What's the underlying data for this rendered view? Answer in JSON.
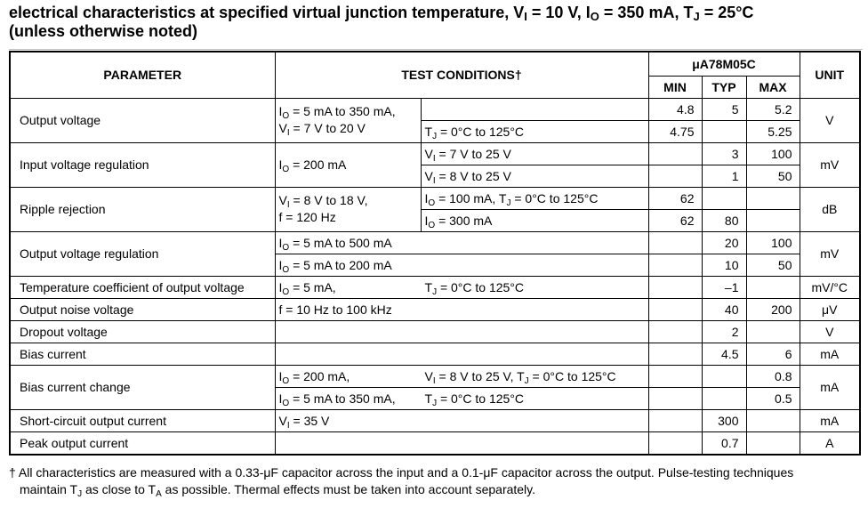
{
  "title": {
    "text": "electrical characteristics at specified virtual junction temperature, V",
    "vi_sub": "I",
    "vi_val": " = 10 V, I",
    "io_sub": "O",
    "io_val": " = 350 mA, T",
    "tj_sub": "J",
    "tj_val": " = 25°C",
    "line2": "(unless otherwise noted)"
  },
  "header": {
    "parameter": "PARAMETER",
    "test_conditions": "TEST CONDITIONS†",
    "device": "μA78M05C",
    "min": "MIN",
    "typ": "TYP",
    "max": "MAX",
    "unit": "UNIT"
  },
  "rows": {
    "output_voltage": {
      "param": "Output voltage",
      "cond_io": "= 5 mA to 350 mA,",
      "cond_vi": "= 7 V to 20 V",
      "sub_tj": "= 0°C to 125°C",
      "r1": {
        "min": "4.8",
        "typ": "5",
        "max": "5.2"
      },
      "r2": {
        "min": "4.75",
        "typ": "",
        "max": "5.25"
      },
      "unit": "V"
    },
    "input_regulation": {
      "param": "Input voltage regulation",
      "cond": "= 200 mA",
      "sub1": "= 7 V to 25 V",
      "sub2": "= 8 V to 25 V",
      "r1": {
        "typ": "3",
        "max": "100"
      },
      "r2": {
        "typ": "1",
        "max": "50"
      },
      "unit": "mV"
    },
    "ripple": {
      "param": "Ripple rejection",
      "cond_vi": "= 8 V to 18 V,",
      "cond_f": "f = 120 Hz",
      "sub1_io": "= 100 mA, T",
      "sub1_tj": "= 0°C to 125°C",
      "sub2": "= 300 mA",
      "r1": {
        "min": "62"
      },
      "r2": {
        "min": "62",
        "typ": "80"
      },
      "unit": "dB"
    },
    "output_regulation": {
      "param": "Output voltage regulation",
      "c1": "= 5 mA to 500 mA",
      "c2": "= 5 mA to 200 mA",
      "r1": {
        "typ": "20",
        "max": "100"
      },
      "r2": {
        "typ": "10",
        "max": "50"
      },
      "unit": "mV"
    },
    "temp_coeff": {
      "param": "Temperature coefficient of output voltage",
      "c_io": "= 5 mA,",
      "c_tj": "= 0°C to 125°C",
      "typ": "–1",
      "unit": "mV/°C"
    },
    "noise": {
      "param": "Output noise voltage",
      "cond": "f = 10 Hz to 100 kHz",
      "typ": "40",
      "max": "200",
      "unit": "μV"
    },
    "dropout": {
      "param": "Dropout voltage",
      "typ": "2",
      "unit": "V"
    },
    "bias": {
      "param": "Bias current",
      "typ": "4.5",
      "max": "6",
      "unit": "mA"
    },
    "bias_change": {
      "param": "Bias current change",
      "c1_io": "= 200 mA,",
      "c1_vi": "= 8 V to 25 V, T",
      "c1_tj": "= 0°C to 125°C",
      "c2_io": "= 5 mA to 350 mA,",
      "c2_tj": "= 0°C to 125°C",
      "r1_max": "0.8",
      "r2_max": "0.5",
      "unit": "mA"
    },
    "short_circuit": {
      "param": "Short-circuit output current",
      "cond": "= 35 V",
      "typ": "300",
      "unit": "mA"
    },
    "peak": {
      "param": "Peak output current",
      "typ": "0.7",
      "unit": "A"
    }
  },
  "symbols": {
    "I": "I",
    "V": "V",
    "T": "T",
    "sub_O": "O",
    "sub_I": "I",
    "sub_J": "J",
    "sub_A": "A"
  },
  "footnote": {
    "line1": "† All characteristics are measured with a 0.33-μF capacitor across the input and a 0.1-μF capacitor across the output. Pulse-testing techniques",
    "line2a": "maintain T",
    "line2b": " as close to T",
    "line2c": " as possible. Thermal effects must be taken into account separately."
  }
}
